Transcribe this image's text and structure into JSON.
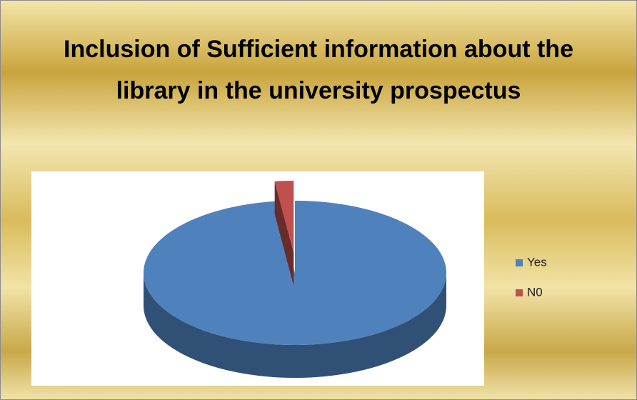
{
  "chart_data": {
    "type": "pie",
    "title": "Inclusion of Sufficient information about the library in the university prospectus",
    "categories": [
      "Yes",
      "N0"
    ],
    "values": [
      98,
      2
    ],
    "colors": [
      "#4f81bd",
      "#c0504d"
    ],
    "legend": "right"
  }
}
